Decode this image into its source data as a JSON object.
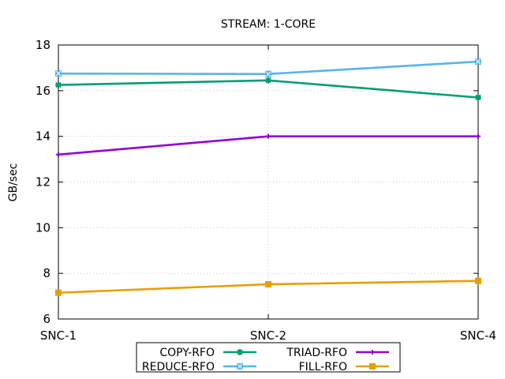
{
  "chart_data": {
    "type": "line",
    "title": "STREAM: 1-CORE",
    "ylabel": "GB/sec",
    "xlabel": "",
    "categories": [
      "SNC-1",
      "SNC-2",
      "SNC-4"
    ],
    "ylim": [
      6,
      18
    ],
    "yticks": [
      6,
      8,
      10,
      12,
      14,
      16,
      18
    ],
    "grid": true,
    "legend_position": "bottom-center",
    "series": [
      {
        "name": "COPY-RFO",
        "values": [
          16.25,
          16.45,
          15.7
        ],
        "color": "#009e73",
        "marker": "star"
      },
      {
        "name": "TRIAD-RFO",
        "values": [
          13.2,
          14.0,
          14.0
        ],
        "color": "#9400d3",
        "marker": "plus"
      },
      {
        "name": "REDUCE-RFO",
        "values": [
          16.75,
          16.73,
          17.27
        ],
        "color": "#56b4e9",
        "marker": "square-x"
      },
      {
        "name": "FILL-RFO",
        "values": [
          7.15,
          7.52,
          7.67
        ],
        "color": "#e69f00",
        "marker": "square"
      }
    ]
  }
}
